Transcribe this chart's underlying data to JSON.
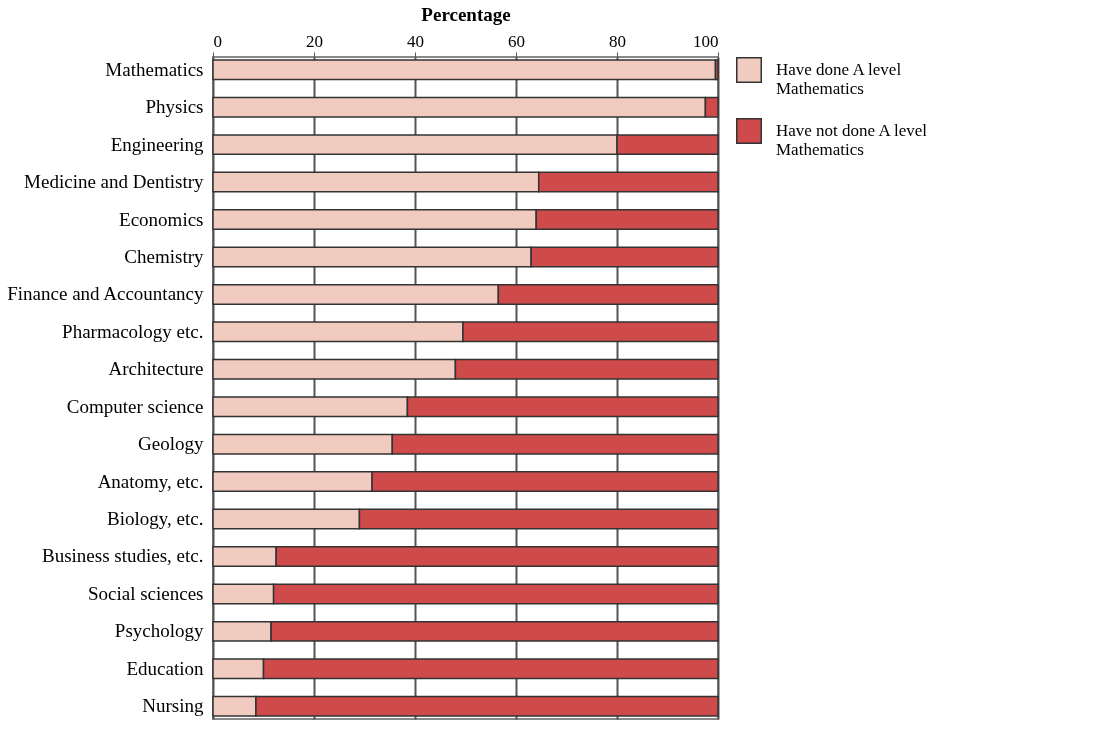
{
  "chart_data": {
    "type": "bar",
    "orientation": "horizontal",
    "stacked": true,
    "xlabel": "Percentage",
    "categories": [
      "Mathematics",
      "Physics",
      "Engineering",
      "Medicine and Dentistry",
      "Economics",
      "Chemistry",
      "Finance and Accountancy",
      "Pharmacology etc.",
      "Architecture",
      "Computer science",
      "Geology",
      "Anatomy, etc.",
      "Biology, etc.",
      "Business studies, etc.",
      "Social sciences",
      "Psychology",
      "Education",
      "Nursing"
    ],
    "series": [
      {
        "name": "Have done A level Mathematics",
        "color": "#f2cbc0",
        "values": [
          99.5,
          97.5,
          80,
          64.5,
          64,
          63,
          56.5,
          49.5,
          48,
          38.5,
          35.5,
          31.5,
          29,
          12.5,
          12,
          11.5,
          10,
          8.5
        ]
      },
      {
        "name": "Have not done A level Mathematics",
        "color": "#cf4a4a",
        "values": [
          0.5,
          2.5,
          20,
          35.5,
          36,
          37,
          43.5,
          50.5,
          52,
          61.5,
          64.5,
          68.5,
          71,
          87.5,
          88,
          88.5,
          90,
          91.5
        ]
      }
    ],
    "xlim": [
      0,
      100
    ],
    "xticks": [
      0,
      20,
      40,
      60,
      80,
      100
    ],
    "grid": "x",
    "legend": "top right"
  }
}
